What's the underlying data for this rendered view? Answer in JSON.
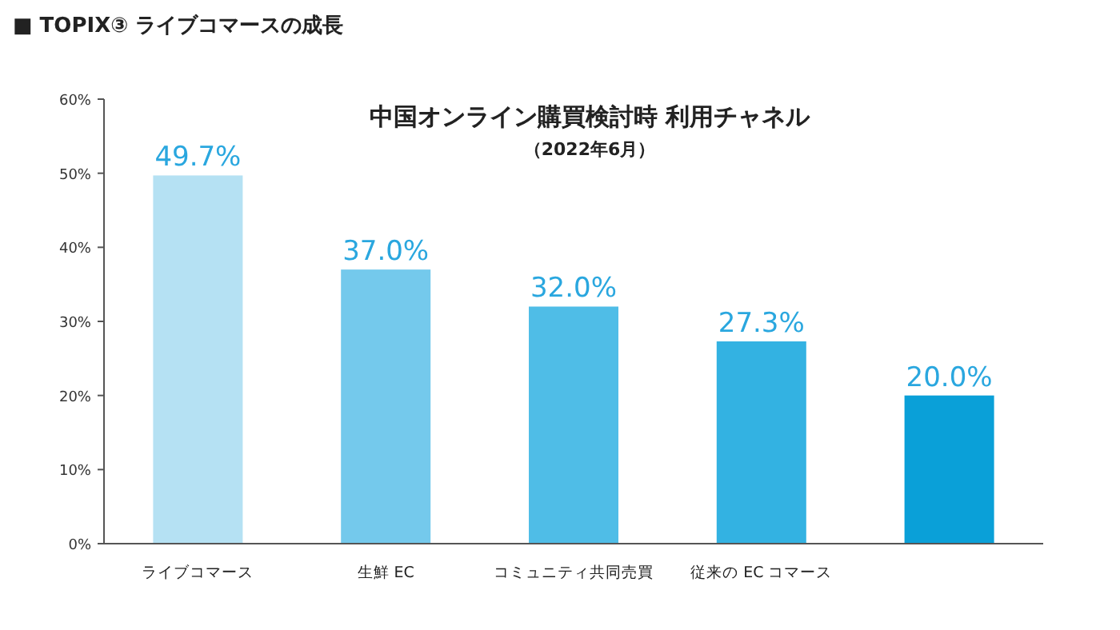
{
  "chart_data": {
    "type": "bar",
    "title": "中国オンライン購買検討時 利用チャネル",
    "subtitle": "（2022年6月）",
    "annotations": [
      "■ TOPIX③ ライブコマースの成長"
    ],
    "categories": [
      "ライブコマース",
      "生鮮 EC",
      "コミュニティ共同売買",
      "従来の EC コマース",
      null
    ],
    "values": [
      49.7,
      37.0,
      32.0,
      27.3,
      20.0
    ],
    "colors": [
      "#b5e1f3",
      "#74c9ec",
      "#4fbde7",
      "#33b2e2",
      "#0aa0d8"
    ],
    "value_labels": [
      "49.7%",
      "37.0%",
      "32.0%",
      "27.3%",
      "20.0%"
    ],
    "ylim": [
      0,
      60
    ],
    "yticks": [
      {
        "value": 0,
        "label": "0%"
      },
      {
        "value": 10,
        "label": "10%"
      },
      {
        "value": 20,
        "label": "20%"
      },
      {
        "value": 30,
        "label": "30%"
      },
      {
        "value": 40,
        "label": "40%"
      },
      {
        "value": 50,
        "label": "50%"
      },
      {
        "value": 60,
        "label": "60%"
      }
    ],
    "grid": false
  }
}
